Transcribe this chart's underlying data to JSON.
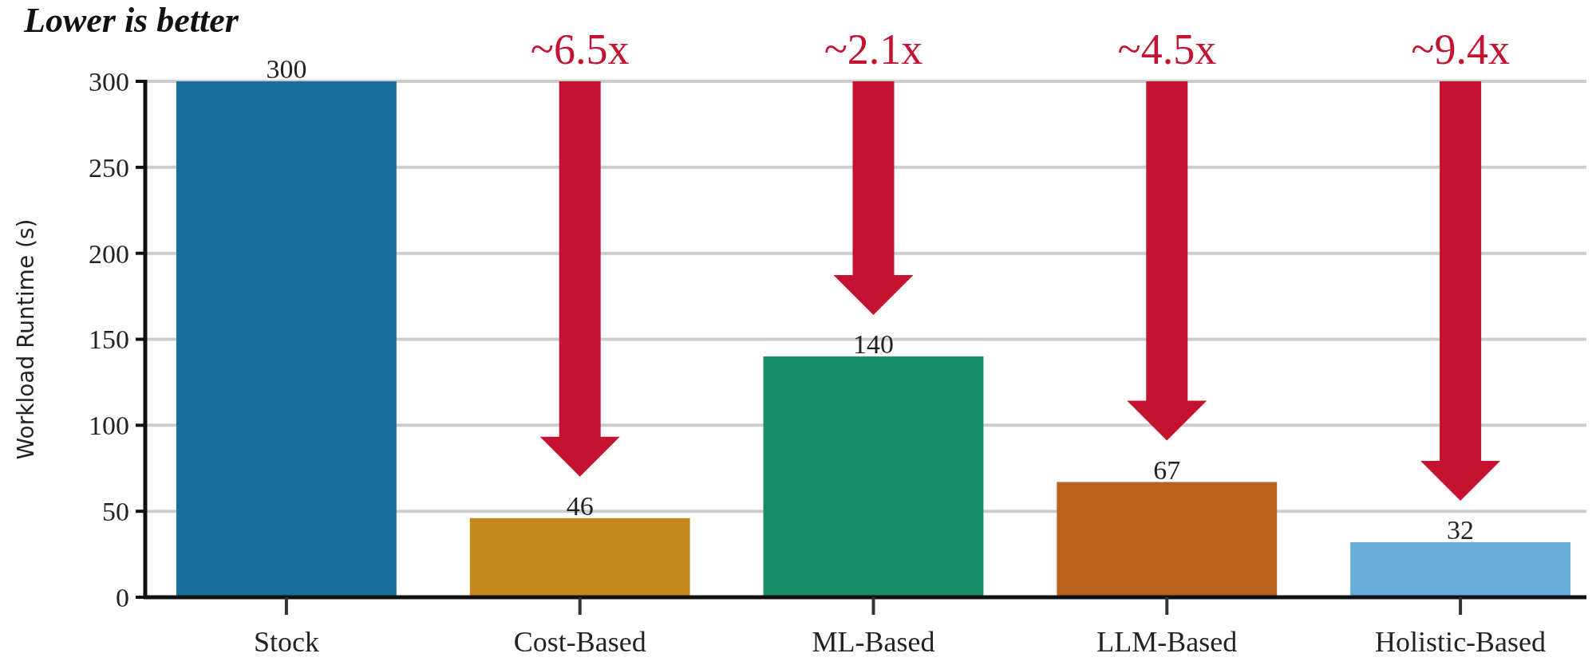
{
  "chart_data": {
    "type": "bar",
    "title": "Lower is better",
    "ylabel": "Workload Runtime (s)",
    "categories": [
      "Stock",
      "Cost-Based",
      "ML-Based",
      "LLM-Based",
      "Holistic-Based"
    ],
    "values": [
      300,
      46,
      140,
      67,
      32
    ],
    "colors": [
      "#1a6e9e",
      "#c4881f",
      "#178c68",
      "#b8601e",
      "#66aed8"
    ],
    "ylim": [
      0,
      300
    ],
    "yticks": [
      0,
      50,
      100,
      150,
      200,
      250,
      300
    ],
    "grid": "y",
    "data_labels": true,
    "annotations": [
      "~6.5x",
      "~2.1x",
      "~4.5x",
      "~9.4x"
    ]
  }
}
